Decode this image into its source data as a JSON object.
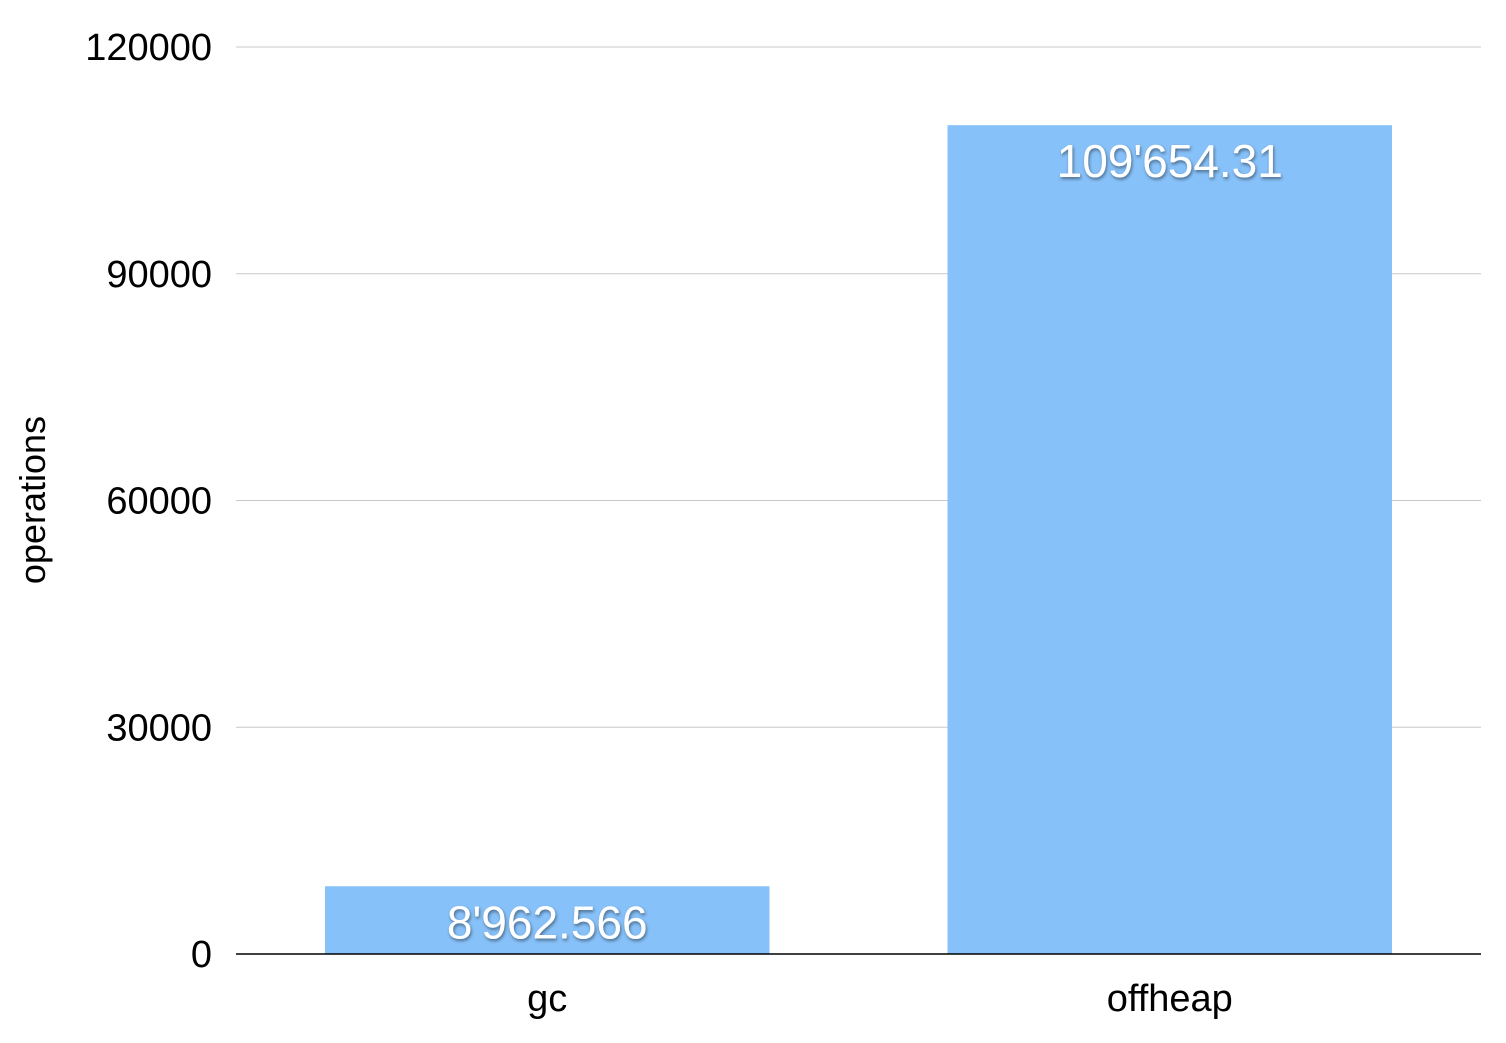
{
  "chart_data": {
    "type": "bar",
    "title": "",
    "xlabel": "",
    "ylabel": "operations",
    "categories": [
      "gc",
      "offheap"
    ],
    "values": [
      8962.566,
      109654.31
    ],
    "data_labels": [
      "8'962.566",
      "109'654.31"
    ],
    "ylim": [
      0,
      120000
    ],
    "yticks": [
      0,
      30000,
      60000,
      90000,
      120000
    ],
    "ytick_labels": [
      "0",
      "30000",
      "60000",
      "90000",
      "120000"
    ],
    "grid": true,
    "legend": "none",
    "colors": {
      "bar": "#87c1f9",
      "grid": "#c8c8c8",
      "axis": "#000000",
      "data_label": "#ffffff"
    }
  }
}
